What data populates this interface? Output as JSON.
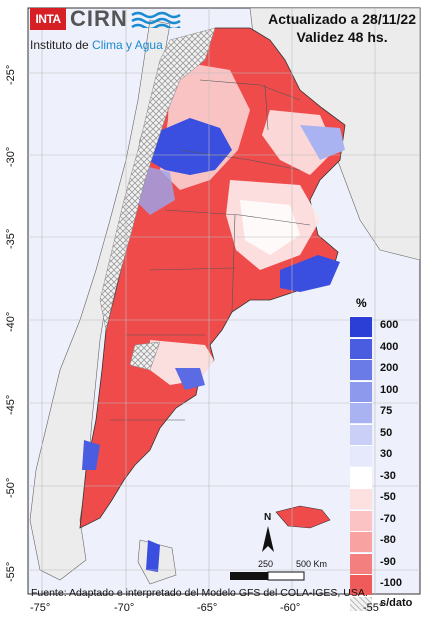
{
  "header": {
    "line1": "Actualizado a 28/11/22",
    "line2": "Validez 48 hs."
  },
  "logo": {
    "inta": "INTA",
    "cirn": "CIRN",
    "institute_prefix": "Instituto de ",
    "institute_highlight": "Clima y Agua"
  },
  "legend": {
    "title": "%",
    "classes": [
      {
        "label": "600",
        "color": "#2b3fd6"
      },
      {
        "label": "400",
        "color": "#4a5ce0"
      },
      {
        "label": "200",
        "color": "#6a7ae6"
      },
      {
        "label": "100",
        "color": "#8c99ec"
      },
      {
        "label": "75",
        "color": "#aab3f1"
      },
      {
        "label": "50",
        "color": "#c9cff6"
      },
      {
        "label": "30",
        "color": "#e6e8fb"
      },
      {
        "label": "-30",
        "color": "#ffffff"
      },
      {
        "label": "-50",
        "color": "#fde0e0"
      },
      {
        "label": "-70",
        "color": "#fbc3c3"
      },
      {
        "label": "-80",
        "color": "#f8a2a2"
      },
      {
        "label": "-90",
        "color": "#f47f7f"
      },
      {
        "label": "-100",
        "color": "#ef5a5a"
      }
    ],
    "nodata_label": "s/dato"
  },
  "scale": {
    "label_mid": "250",
    "label_end": "500 Km",
    "north": "N"
  },
  "source": "Fuente: Adaptado e interpretado del Modelo GFS del COLA-IGES, USA.",
  "axes": {
    "y_ticks": [
      "-25°",
      "-30°",
      "-35°",
      "-40°",
      "-45°",
      "-50°",
      "-55°"
    ],
    "x_ticks": [
      "-75°",
      "-70°",
      "-65°",
      "-60°",
      "-55°"
    ]
  },
  "colors": {
    "ocean": "#eef0fb",
    "land_other": "#ececec",
    "dry": "#ef4b4b",
    "wet": "#2b3fd6",
    "grid": "#bcbcbc"
  }
}
